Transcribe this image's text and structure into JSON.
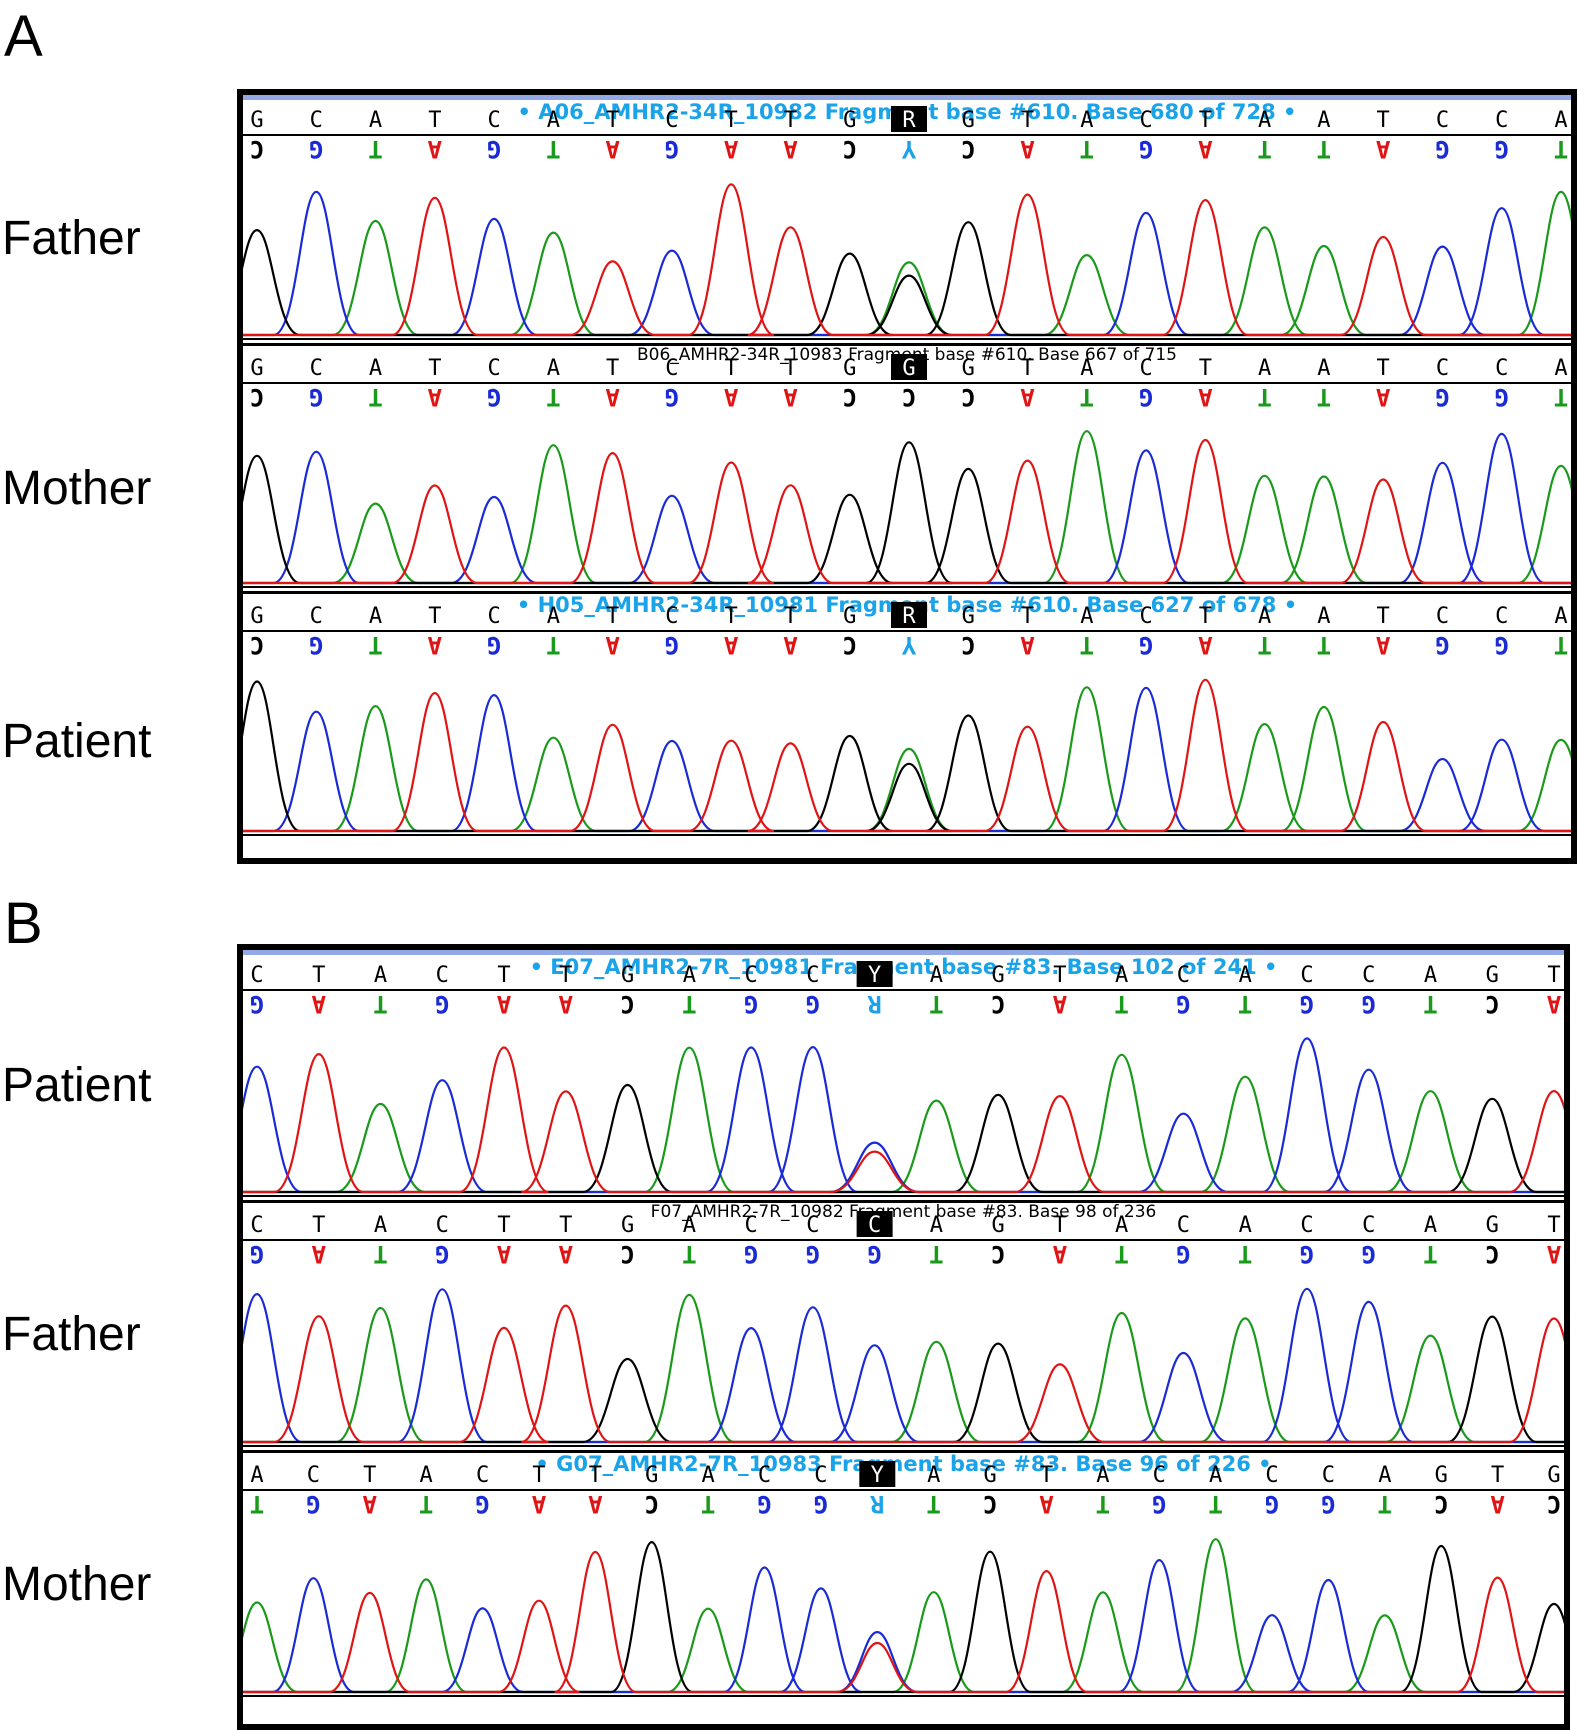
{
  "figure": {
    "panels": [
      {
        "letter": "A",
        "tracks": [
          {
            "label": "Father",
            "header": "• A06_AMHR2-34R_10982 Fragment base #610. Base 680 of 728 •",
            "header_style": "blue",
            "bases": [
              "G",
              "C",
              "A",
              "T",
              "C",
              "A",
              "T",
              "C",
              "T",
              "T",
              "G",
              "R",
              "G",
              "T",
              "A",
              "C",
              "T",
              "A",
              "A",
              "T",
              "C",
              "C",
              "A"
            ],
            "highlight_index": 11,
            "complement": [
              "C",
              "G",
              "T",
              "A",
              "G",
              "T",
              "A",
              "G",
              "A",
              "A",
              "C",
              "Y",
              "C",
              "A",
              "T",
              "G",
              "A",
              "T",
              "T",
              "A",
              "G",
              "G",
              "T"
            ]
          },
          {
            "label": "Mother",
            "header": "B06_AMHR2-34R_10983 Fragment base #610. Base 667 of 715",
            "header_style": "black",
            "bases": [
              "G",
              "C",
              "A",
              "T",
              "C",
              "A",
              "T",
              "C",
              "T",
              "T",
              "G",
              "G",
              "G",
              "T",
              "A",
              "C",
              "T",
              "A",
              "A",
              "T",
              "C",
              "C",
              "A"
            ],
            "highlight_index": 11,
            "complement": [
              "C",
              "G",
              "T",
              "A",
              "G",
              "T",
              "A",
              "G",
              "A",
              "A",
              "C",
              "C",
              "C",
              "A",
              "T",
              "G",
              "A",
              "T",
              "T",
              "A",
              "G",
              "G",
              "T"
            ]
          },
          {
            "label": "Patient",
            "header": "• H05_AMHR2-34R_10981 Fragment base #610. Base 627 of 678 •",
            "header_style": "blue",
            "bases": [
              "G",
              "C",
              "A",
              "T",
              "C",
              "A",
              "T",
              "C",
              "T",
              "T",
              "G",
              "R",
              "G",
              "T",
              "A",
              "C",
              "T",
              "A",
              "A",
              "T",
              "C",
              "C",
              "A"
            ],
            "highlight_index": 11,
            "complement": [
              "C",
              "G",
              "T",
              "A",
              "G",
              "T",
              "A",
              "G",
              "A",
              "A",
              "C",
              "Y",
              "C",
              "A",
              "T",
              "G",
              "A",
              "T",
              "T",
              "A",
              "G",
              "G",
              "T"
            ]
          }
        ]
      },
      {
        "letter": "B",
        "tracks": [
          {
            "label": "Patient",
            "header": "• E07_AMHR2-7R_10981 Fragment base #83. Base 102 of 241 •",
            "header_style": "blue",
            "bases": [
              "C",
              "T",
              "A",
              "C",
              "T",
              "T",
              "G",
              "A",
              "C",
              "C",
              "Y",
              "A",
              "G",
              "T",
              "A",
              "C",
              "A",
              "C",
              "C",
              "A",
              "G",
              "T"
            ],
            "highlight_index": 10,
            "complement": [
              "G",
              "A",
              "T",
              "G",
              "A",
              "A",
              "C",
              "T",
              "G",
              "G",
              "R",
              "T",
              "C",
              "A",
              "T",
              "G",
              "T",
              "G",
              "G",
              "T",
              "C",
              "A"
            ]
          },
          {
            "label": "Father",
            "header": "F07_AMHR2-7R_10982 Fragment base #83. Base 98 of 236",
            "header_style": "black",
            "bases": [
              "C",
              "T",
              "A",
              "C",
              "T",
              "T",
              "G",
              "A",
              "C",
              "C",
              "C",
              "A",
              "G",
              "T",
              "A",
              "C",
              "A",
              "C",
              "C",
              "A",
              "G",
              "T"
            ],
            "highlight_index": 10,
            "complement": [
              "G",
              "A",
              "T",
              "G",
              "A",
              "A",
              "C",
              "T",
              "G",
              "G",
              "G",
              "T",
              "C",
              "A",
              "T",
              "G",
              "T",
              "G",
              "G",
              "T",
              "C",
              "A"
            ]
          },
          {
            "label": "Mother",
            "header": "• G07_AMHR2-7R_10983 Fragment base #83. Base 96 of 226 •",
            "header_style": "blue",
            "bases": [
              "A",
              "C",
              "T",
              "A",
              "C",
              "T",
              "T",
              "G",
              "A",
              "C",
              "C",
              "Y",
              "A",
              "G",
              "T",
              "A",
              "C",
              "A",
              "C",
              "C",
              "A",
              "G",
              "T",
              "G"
            ],
            "highlight_index": 11,
            "complement": [
              "T",
              "G",
              "A",
              "T",
              "G",
              "A",
              "A",
              "C",
              "T",
              "G",
              "G",
              "R",
              "T",
              "C",
              "A",
              "T",
              "G",
              "T",
              "G",
              "G",
              "T",
              "C",
              "A",
              "C"
            ]
          }
        ]
      }
    ],
    "colors": {
      "A": "#1a9a1a",
      "C": "#1a2bd6",
      "G": "#000000",
      "T": "#e01414",
      "ambiguity": "#1aa3e8"
    }
  }
}
